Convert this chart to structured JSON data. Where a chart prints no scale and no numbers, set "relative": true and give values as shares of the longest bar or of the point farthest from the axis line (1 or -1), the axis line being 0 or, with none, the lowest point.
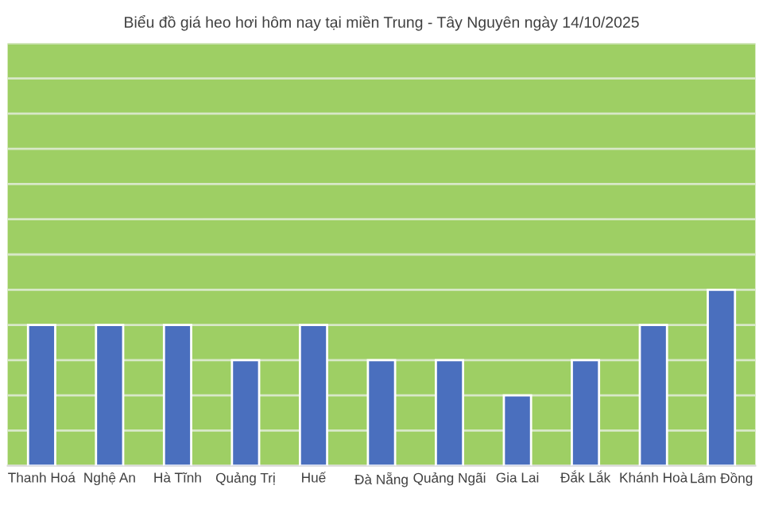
{
  "chart_data": {
    "type": "bar",
    "title": "Biểu đồ giá heo hơi hôm nay tại miền Trung - Tây Nguyên ngày 14/10/2025",
    "categories": [
      "Thanh Hoá",
      "Nghệ An",
      "Hà Tĩnh",
      "Quảng Trị",
      "Huế",
      "Đà Nẵng",
      "Quảng Ngãi",
      "Gia Lai",
      "Đắk Lắk",
      "Khánh Hoà",
      "Lâm Đồng"
    ],
    "values": [
      0.8,
      0.8,
      0.8,
      0.6,
      0.8,
      0.6,
      0.6,
      0.4,
      0.6,
      0.8,
      1
    ],
    "color": "#4a6fbe",
    "relative": true,
    "grid": "y"
  }
}
